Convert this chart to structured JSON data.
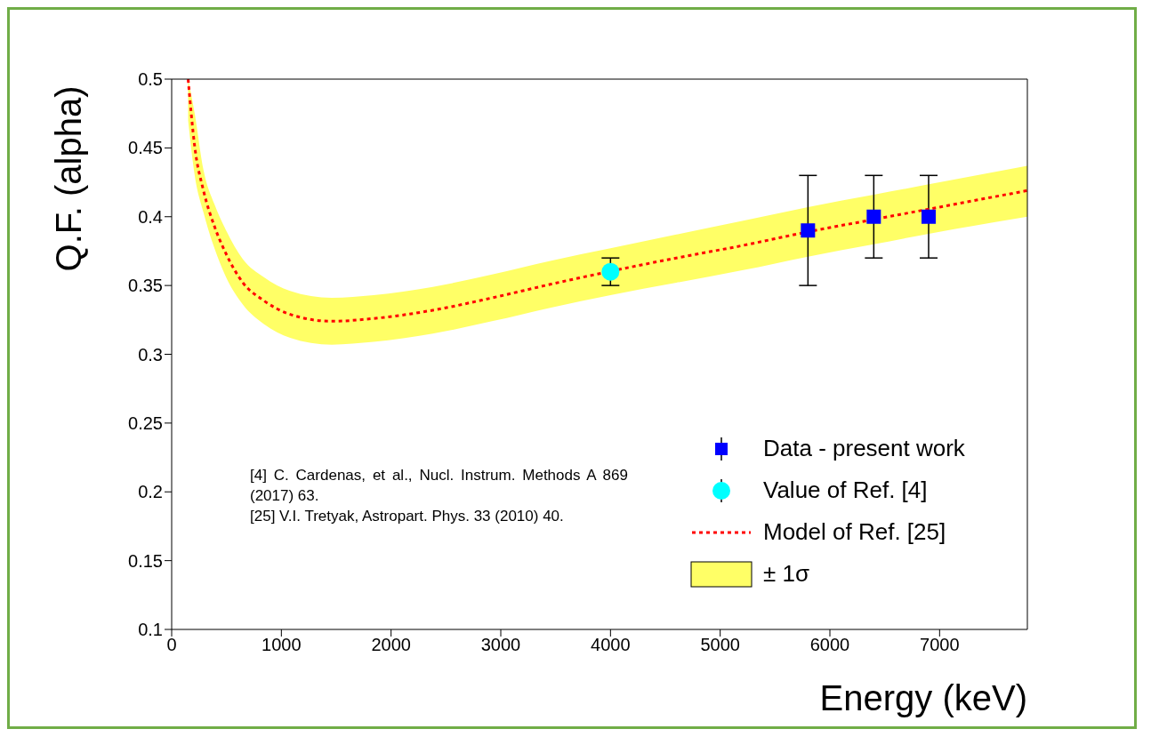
{
  "chart_data": {
    "type": "scatter",
    "xlabel": "Energy (keV)",
    "ylabel": "Q.F. (alpha)",
    "xlim": [
      0,
      7800
    ],
    "xticks": [
      0,
      1000,
      2000,
      3000,
      4000,
      5000,
      6000,
      7000
    ],
    "ylim": [
      0.1,
      0.5
    ],
    "yticks": [
      0.1,
      0.15,
      0.2,
      0.25,
      0.3,
      0.35,
      0.4,
      0.45,
      0.5
    ],
    "legend": "bottom right",
    "series": [
      {
        "name": "Data - present work",
        "color": "#0000ff",
        "marker": "square",
        "x": [
          5800,
          6400,
          6900
        ],
        "values": [
          0.39,
          0.4,
          0.4
        ],
        "errors": [
          0.04,
          0.03,
          0.03
        ]
      },
      {
        "name": "Value of Ref. [4]",
        "color": "#00ffff",
        "marker": "circle",
        "x": [
          4000
        ],
        "values": [
          0.36
        ],
        "errors": [
          0.01
        ]
      },
      {
        "type": "line",
        "name": "Model of Ref. [25]",
        "color": "#ff0000",
        "line_style": "dotted",
        "marker": "none",
        "x": [
          150,
          210,
          290,
          390,
          490,
          650,
          840,
          1080,
          1460,
          1840,
          2380,
          2920,
          3460,
          4000,
          4600,
          5200,
          5800,
          6400,
          7000,
          7800
        ],
        "values": [
          0.5,
          0.451,
          0.419,
          0.393,
          0.374,
          0.352,
          0.339,
          0.329,
          0.324,
          0.326,
          0.332,
          0.341,
          0.351,
          null,
          0.37,
          0.379,
          0.389,
          0.398,
          0.407,
          0.419
        ],
        "lower": [
          0.47,
          0.43,
          0.403,
          0.377,
          0.357,
          0.336,
          0.322,
          0.312,
          0.307,
          0.309,
          0.315,
          0.324,
          0.334,
          0.343,
          0.352,
          0.361,
          0.371,
          0.38,
          0.389,
          0.4
        ],
        "upper": [
          0.5,
          0.475,
          0.434,
          0.409,
          0.391,
          0.369,
          0.356,
          0.346,
          0.341,
          0.343,
          0.349,
          0.358,
          0.368,
          0.377,
          0.387,
          0.397,
          0.407,
          0.416,
          0.425,
          0.437
        ]
      }
    ],
    "annotations": [
      "± 1σ",
      "[4]  C. Cardenas, et al., Nucl. Instrum. Methods A 869 (2017) 63.",
      "[25] V.I. Tretyak, Astropart. Phys. 33 (2010) 40."
    ]
  }
}
